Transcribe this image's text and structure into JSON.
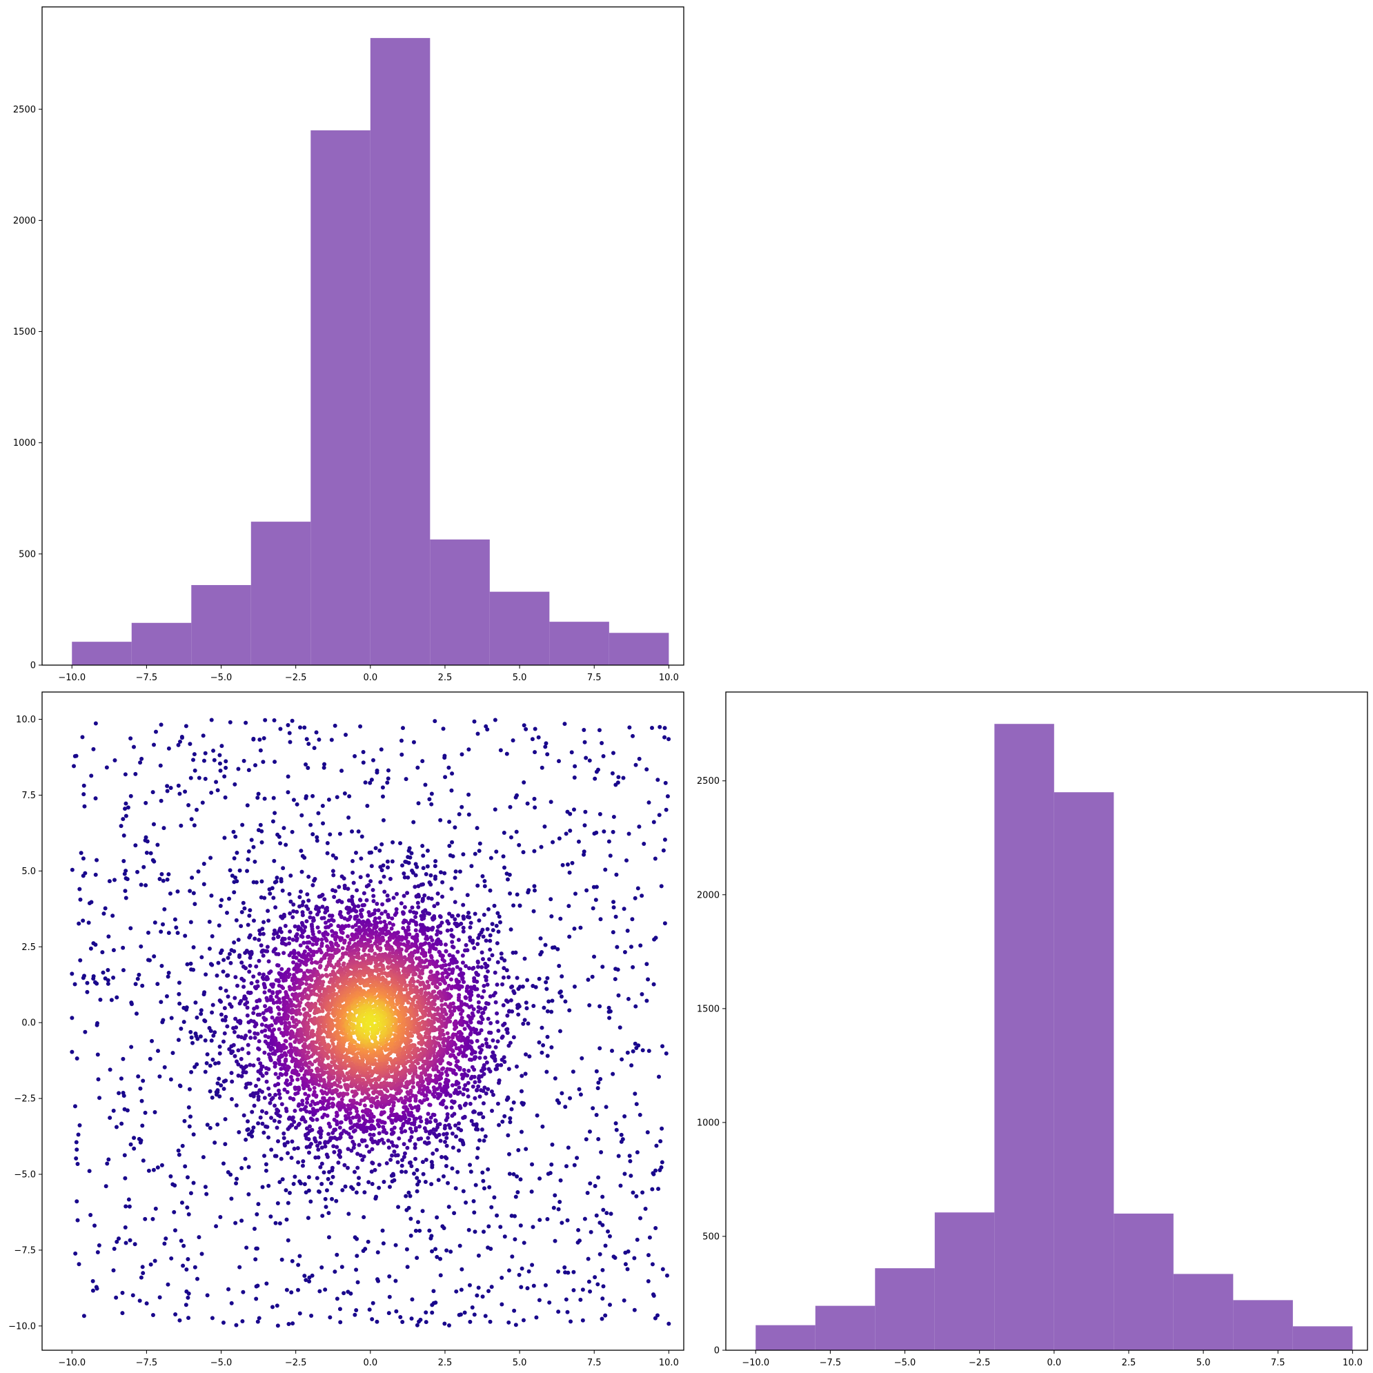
{
  "colors": {
    "bar": "#9467bd",
    "frame": "#000000",
    "background": "#ffffff",
    "colormap": "plasma"
  },
  "chart_data": [
    {
      "id": "hist-x",
      "type": "bar",
      "position": "top-left",
      "bin_edges": [
        -10,
        -8,
        -6,
        -4,
        -2,
        0,
        2,
        4,
        6,
        8,
        10
      ],
      "values": [
        105,
        190,
        360,
        645,
        2405,
        2820,
        565,
        330,
        195,
        145
      ],
      "xlim": [
        -11,
        10.5
      ],
      "ylim": [
        0,
        2960
      ],
      "xticks": [
        -10.0,
        -7.5,
        -5.0,
        -2.5,
        0.0,
        2.5,
        5.0,
        7.5,
        10.0
      ],
      "xtick_labels": [
        "−10.0",
        "−7.5",
        "−5.0",
        "−2.5",
        "0.0",
        "2.5",
        "5.0",
        "7.5",
        "10.0"
      ],
      "yticks": [
        0,
        500,
        1000,
        1500,
        2000,
        2500
      ],
      "ytick_labels": [
        "0",
        "500",
        "1000",
        "1500",
        "2000",
        "2500"
      ],
      "grid": false
    },
    {
      "id": "scatter-xy",
      "type": "scatter",
      "position": "bottom-left",
      "description_of_points": "~7000 points: dense Gaussian core at (0,0) colored by density (plasma colormap, yellow center to dark purple edges) plus uniform background over [-10,10]x[-10,10]",
      "center": [
        0,
        0
      ],
      "xlim": [
        -11,
        10.5
      ],
      "ylim": [
        -10.8,
        10.9
      ],
      "xticks": [
        -10.0,
        -7.5,
        -5.0,
        -2.5,
        0.0,
        2.5,
        5.0,
        7.5,
        10.0
      ],
      "xtick_labels": [
        "−10.0",
        "−7.5",
        "−5.0",
        "−2.5",
        "0.0",
        "2.5",
        "5.0",
        "7.5",
        "10.0"
      ],
      "yticks": [
        10.0,
        7.5,
        5.0,
        2.5,
        0.0,
        -2.5,
        -5.0,
        -7.5,
        -10.0
      ],
      "ytick_labels": [
        "10.0",
        "7.5",
        "5.0",
        "2.5",
        "0.0",
        "−2.5",
        "−5.0",
        "−7.5",
        "−10.0"
      ],
      "grid": false
    },
    {
      "id": "hist-y",
      "type": "bar",
      "position": "bottom-right",
      "bin_edges": [
        -10,
        -8,
        -6,
        -4,
        -2,
        0,
        2,
        4,
        6,
        8,
        10
      ],
      "values": [
        110,
        195,
        360,
        605,
        2750,
        2450,
        600,
        335,
        220,
        105
      ],
      "xlim": [
        -11,
        10.5
      ],
      "ylim": [
        0,
        2890
      ],
      "xticks": [
        -10.0,
        -7.5,
        -5.0,
        -2.5,
        0.0,
        2.5,
        5.0,
        7.5,
        10.0
      ],
      "xtick_labels": [
        "−10.0",
        "−7.5",
        "−5.0",
        "−2.5",
        "0.0",
        "2.5",
        "5.0",
        "7.5",
        "10.0"
      ],
      "yticks": [
        0,
        500,
        1000,
        1500,
        2000,
        2500
      ],
      "ytick_labels": [
        "0",
        "500",
        "1000",
        "1500",
        "2000",
        "2500"
      ],
      "grid": false
    }
  ]
}
